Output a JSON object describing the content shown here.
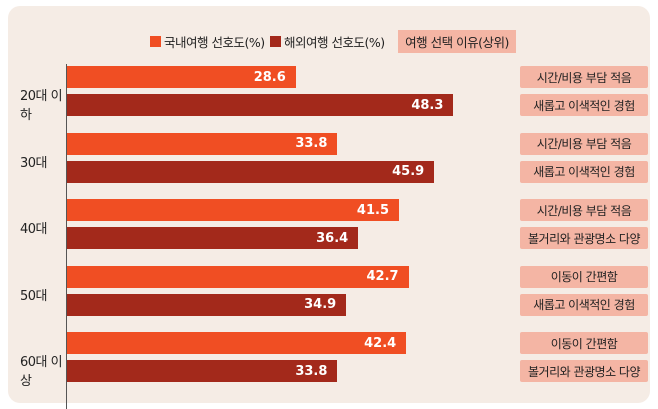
{
  "chart_data": {
    "type": "bar",
    "orientation": "horizontal",
    "categories": [
      "20대 이하",
      "30대",
      "40대",
      "50대",
      "60대 이상"
    ],
    "series": [
      {
        "name": "국내여행 선호도(%)",
        "color": "#f04e23",
        "values": [
          28.6,
          33.8,
          41.5,
          42.7,
          42.4
        ],
        "reasons": [
          "시간/비용 부담 적음",
          "시간/비용 부담 적음",
          "시간/비용 부담 적음",
          "이동이 간편함",
          "이동이 간편함"
        ]
      },
      {
        "name": "해외여행 선호도(%)",
        "color": "#a3291b",
        "values": [
          48.3,
          45.9,
          36.4,
          34.9,
          33.8
        ],
        "reasons": [
          "새롭고 이색적인 경험",
          "새롭고 이색적인 경험",
          "볼거리와 관광명소 다양",
          "새롭고 이색적인 경험",
          "볼거리와 관광명소 다양"
        ]
      }
    ],
    "reason_legend": "여행 선택 이유(상위)",
    "reason_color": "#f4b5a4",
    "grid": false,
    "legend_position": "top"
  }
}
